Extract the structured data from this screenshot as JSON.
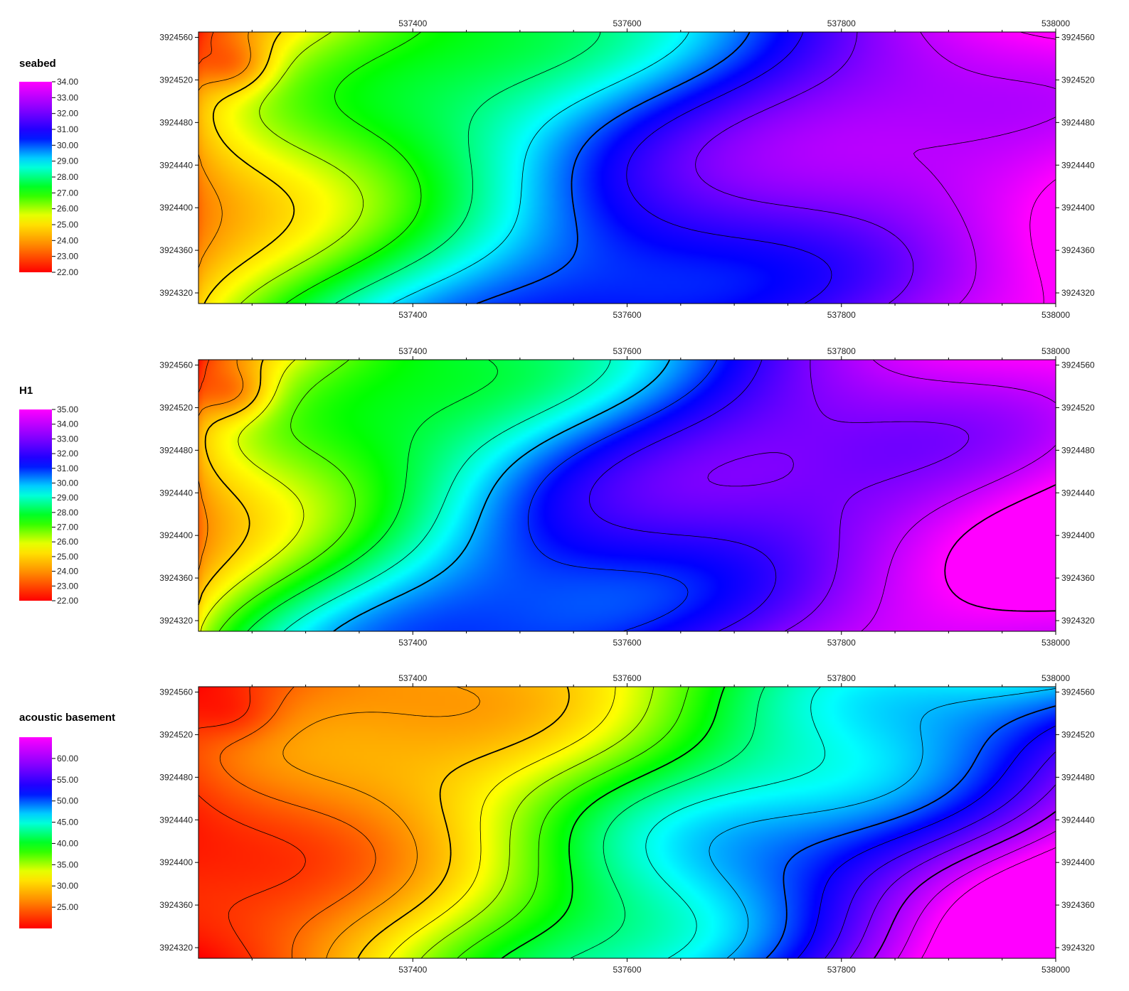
{
  "chart_data": [
    {
      "type": "heatmap",
      "title": "seabed",
      "x_ticks": [
        537400,
        537600,
        537800,
        538000
      ],
      "x_tick_labels": [
        "537400",
        "537600",
        "537800",
        "538000"
      ],
      "xlim": [
        537200,
        538000
      ],
      "y_ticks": [
        3924560,
        3924520,
        3924480,
        3924440,
        3924400,
        3924360,
        3924320
      ],
      "y_tick_labels": [
        "3924560",
        "3924520",
        "3924480",
        "3924440",
        "3924400",
        "3924360",
        "3924320"
      ],
      "ylim": [
        3924310,
        3924565
      ],
      "legend_values": [
        "34.00",
        "33.00",
        "32.00",
        "31.00",
        "30.00",
        "29.00",
        "28.00",
        "27.00",
        "26.00",
        "25.00",
        "24.00",
        "23.00",
        "22.00"
      ],
      "value_range": [
        22,
        34
      ],
      "contours": true,
      "colorscale": [
        "#ff0000",
        "#ff8800",
        "#ffff00",
        "#00ff00",
        "#00ffff",
        "#0000ff",
        "#8800ff",
        "#ff00ff"
      ],
      "trend": "increases from upper-left (about 22-23) to lower-right (about 34)"
    },
    {
      "type": "heatmap",
      "title": "H1",
      "x_ticks": [
        537400,
        537600,
        537800,
        538000
      ],
      "x_tick_labels": [
        "537400",
        "537600",
        "537800",
        "538000"
      ],
      "xlim": [
        537200,
        538000
      ],
      "y_ticks": [
        3924560,
        3924520,
        3924480,
        3924440,
        3924400,
        3924360,
        3924320
      ],
      "y_tick_labels": [
        "3924560",
        "3924520",
        "3924480",
        "3924440",
        "3924400",
        "3924360",
        "3924320"
      ],
      "ylim": [
        3924310,
        3924565
      ],
      "legend_values": [
        "35.00",
        "34.00",
        "33.00",
        "32.00",
        "31.00",
        "30.00",
        "29.00",
        "28.00",
        "27.00",
        "26.00",
        "25.00",
        "24.00",
        "23.00",
        "22.00"
      ],
      "value_range": [
        22,
        35
      ],
      "contours": true,
      "colorscale": [
        "#ff0000",
        "#ff8800",
        "#ffff00",
        "#00ff00",
        "#00ffff",
        "#0000ff",
        "#8800ff",
        "#ff00ff"
      ],
      "trend": "increases from upper-left (about 22-23) to right side (about 35)"
    },
    {
      "type": "heatmap",
      "title": "acoustic basement",
      "x_ticks": [
        537400,
        537600,
        537800,
        538000
      ],
      "x_tick_labels": [
        "537400",
        "537600",
        "537800",
        "538000"
      ],
      "xlim": [
        537200,
        538000
      ],
      "y_ticks": [
        3924560,
        3924520,
        3924480,
        3924440,
        3924400,
        3924360,
        3924320
      ],
      "y_tick_labels": [
        "3924560",
        "3924520",
        "3924480",
        "3924440",
        "3924400",
        "3924360",
        "3924320"
      ],
      "ylim": [
        3924310,
        3924565
      ],
      "legend_values": [
        "60.00",
        "55.00",
        "50.00",
        "45.00",
        "40.00",
        "35.00",
        "30.00",
        "25.00"
      ],
      "value_range": [
        20,
        65
      ],
      "contours": true,
      "colorscale": [
        "#ff0000",
        "#ff8800",
        "#ffff00",
        "#00ff00",
        "#00ffff",
        "#0000ff",
        "#8800ff",
        "#ff00ff"
      ],
      "trend": "increases from upper-left (about 22) to lower-right (about 62)"
    }
  ]
}
